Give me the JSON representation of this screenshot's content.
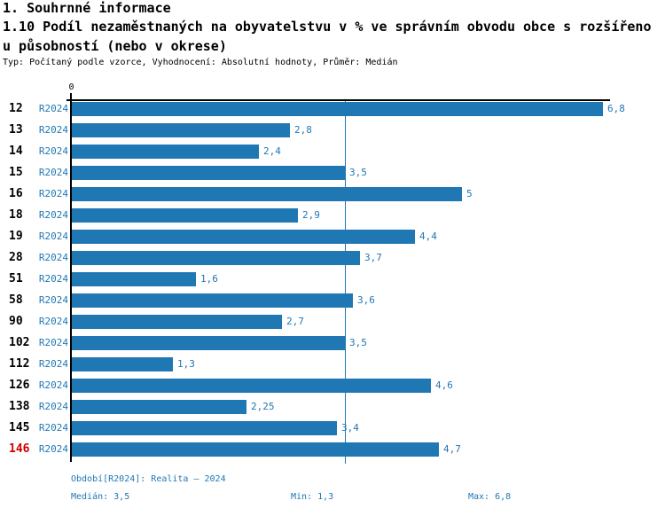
{
  "header": {
    "section": "1. Souhrnné informace",
    "title_line1": "1.10 Podíl nezaměstnaných na obyvatelstvu v % ve správním obvodu obce s rozšířeno",
    "title_line2": "u působností (nebo v okrese)",
    "subtitle": "Typ: Počítaný podle vzorce, Vyhodnocení: Absolutní hodnoty, Průměr: Medián"
  },
  "chart": {
    "zero_label": "0",
    "rows": [
      {
        "label": "12",
        "series": "R2024",
        "value": 6.8,
        "display": "6,8",
        "highlight": false
      },
      {
        "label": "13",
        "series": "R2024",
        "value": 2.8,
        "display": "2,8",
        "highlight": false
      },
      {
        "label": "14",
        "series": "R2024",
        "value": 2.4,
        "display": "2,4",
        "highlight": false
      },
      {
        "label": "15",
        "series": "R2024",
        "value": 3.5,
        "display": "3,5",
        "highlight": false
      },
      {
        "label": "16",
        "series": "R2024",
        "value": 5,
        "display": "5",
        "highlight": false
      },
      {
        "label": "18",
        "series": "R2024",
        "value": 2.9,
        "display": "2,9",
        "highlight": false
      },
      {
        "label": "19",
        "series": "R2024",
        "value": 4.4,
        "display": "4,4",
        "highlight": false
      },
      {
        "label": "28",
        "series": "R2024",
        "value": 3.7,
        "display": "3,7",
        "highlight": false
      },
      {
        "label": "51",
        "series": "R2024",
        "value": 1.6,
        "display": "1,6",
        "highlight": false
      },
      {
        "label": "58",
        "series": "R2024",
        "value": 3.6,
        "display": "3,6",
        "highlight": false
      },
      {
        "label": "90",
        "series": "R2024",
        "value": 2.7,
        "display": "2,7",
        "highlight": false
      },
      {
        "label": "102",
        "series": "R2024",
        "value": 3.5,
        "display": "3,5",
        "highlight": false
      },
      {
        "label": "112",
        "series": "R2024",
        "value": 1.3,
        "display": "1,3",
        "highlight": false
      },
      {
        "label": "126",
        "series": "R2024",
        "value": 4.6,
        "display": "4,6",
        "highlight": false
      },
      {
        "label": "138",
        "series": "R2024",
        "value": 2.25,
        "display": "2,25",
        "highlight": false
      },
      {
        "label": "145",
        "series": "R2024",
        "value": 3.4,
        "display": "3,4",
        "highlight": false
      },
      {
        "label": "146",
        "series": "R2024",
        "value": 4.7,
        "display": "4,7",
        "highlight": true
      }
    ]
  },
  "footer": {
    "period": "Období[R2024]: Realita – 2024",
    "median": "Medián: 3,5",
    "min": "Min: 1,3",
    "max": "Max: 6,8"
  },
  "colors": {
    "bar": "#1f77b4",
    "blue_text": "#1f77b4",
    "median_line": "#1f77b4",
    "axis": "#000000",
    "highlight_red": "#cc0000",
    "background": "#ffffff"
  },
  "chart_data": {
    "type": "bar",
    "orientation": "horizontal",
    "title": "1.10 Podíl nezaměstnaných na obyvatelstvu v % ve správním obvodu obce s rozšířenou působností (nebo v okrese)",
    "subtitle": "Typ: Počítaný podle vzorce, Vyhodnocení: Absolutní hodnoty, Průměr: Medián",
    "categories": [
      "12",
      "13",
      "14",
      "15",
      "16",
      "18",
      "19",
      "28",
      "51",
      "58",
      "90",
      "102",
      "112",
      "126",
      "138",
      "145",
      "146"
    ],
    "series": [
      {
        "name": "R2024",
        "values": [
          6.8,
          2.8,
          2.4,
          3.5,
          5,
          2.9,
          4.4,
          3.7,
          1.6,
          3.6,
          2.7,
          3.5,
          1.3,
          4.6,
          2.25,
          3.4,
          4.7
        ]
      }
    ],
    "value_labels": [
      "6,8",
      "2,8",
      "2,4",
      "3,5",
      "5",
      "2,9",
      "4,4",
      "3,7",
      "1,6",
      "3,6",
      "2,7",
      "3,5",
      "1,3",
      "4,6",
      "2,25",
      "3,4",
      "4,7"
    ],
    "xlabel": "",
    "ylabel": "",
    "xlim": [
      0,
      6.9
    ],
    "value_axis_ticks": [
      0
    ],
    "grid": false,
    "legend_position": "none",
    "median_line": 3.5,
    "stats": {
      "median": 3.5,
      "min": 1.3,
      "max": 6.8
    },
    "highlighted_category": "146",
    "decimal_separator": ","
  }
}
